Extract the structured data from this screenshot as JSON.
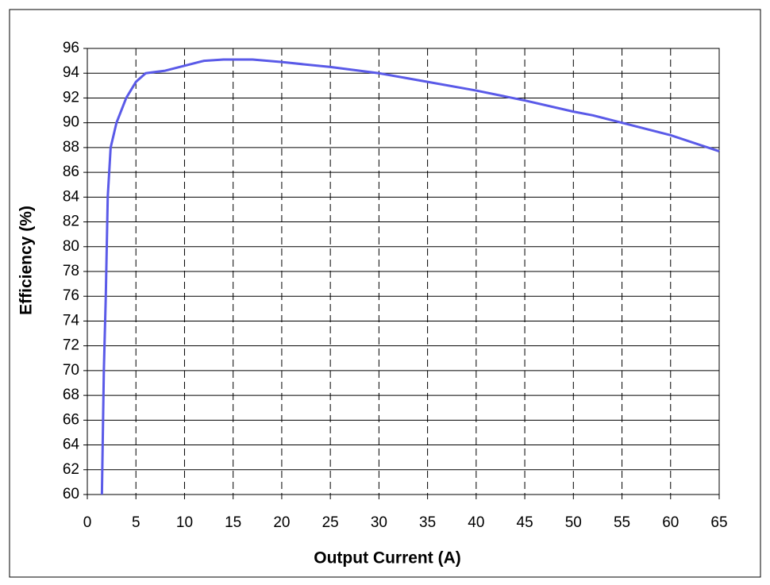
{
  "chart_data": {
    "type": "line",
    "x_label": "Output Current (A)",
    "y_label": "Efficiency (%)",
    "xlim": [
      0,
      65
    ],
    "ylim": [
      60,
      96
    ],
    "xticks": [
      0,
      5,
      10,
      15,
      20,
      25,
      30,
      35,
      40,
      45,
      50,
      55,
      60,
      65
    ],
    "yticks": [
      60,
      62,
      64,
      66,
      68,
      70,
      72,
      74,
      76,
      78,
      80,
      82,
      84,
      86,
      88,
      90,
      92,
      94,
      96
    ],
    "grid": true,
    "series": [
      {
        "color": "#5a5ae8",
        "x": [
          1.5,
          1.7,
          1.9,
          2.1,
          2.4,
          3,
          4,
          5,
          6,
          7,
          8,
          10,
          12,
          14,
          17,
          20,
          25,
          30,
          35,
          40,
          45,
          50,
          52,
          55,
          60,
          65
        ],
        "values": [
          60,
          70,
          76,
          84,
          88,
          90,
          92,
          93.3,
          94,
          94.1,
          94.2,
          94.6,
          95,
          95.1,
          95.1,
          94.9,
          94.5,
          94,
          93.3,
          92.6,
          91.8,
          90.9,
          90.6,
          90,
          89,
          87.7
        ]
      }
    ]
  }
}
